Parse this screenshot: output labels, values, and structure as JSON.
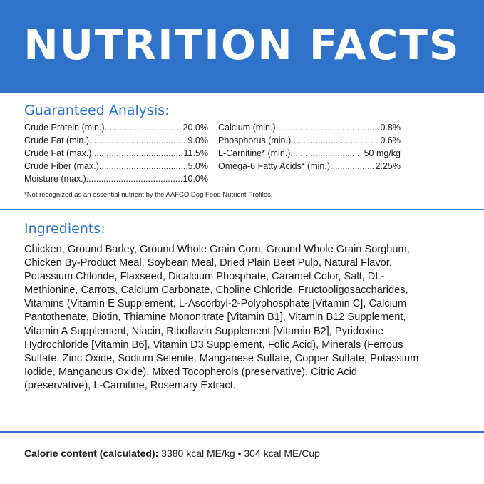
{
  "header": {
    "title": "NUTRITION FACTS"
  },
  "guaranteed_analysis": {
    "heading": "Guaranteed Analysis:",
    "left_column": [
      {
        "label": "Crude Protein (min.)",
        "value": "20.0%"
      },
      {
        "label": "Crude Fat (min.)",
        "value": "9.0%"
      },
      {
        "label": "Crude Fat (max.)",
        "value": "11.5%"
      },
      {
        "label": "Crude Fiber (max.)",
        "value": "5.0%"
      },
      {
        "label": "Moisture (max.)",
        "value": "10.0%"
      }
    ],
    "right_column": [
      {
        "label": "Calcium (min.)",
        "value": "0.8%"
      },
      {
        "label": "Phosphorus (min.)",
        "value": "0.6%"
      },
      {
        "label": "L-Carnitine* (min.)",
        "value": "50 mg/kg"
      },
      {
        "label": "Omega-6 Fatty Acids* (min.)",
        "value": "2.25%"
      }
    ],
    "footnote": "*Not recognized as an essential nutrient by the AAFCO Dog Food Nutrient Profiles."
  },
  "ingredients": {
    "heading": "Ingredients:",
    "text": "Chicken, Ground Barley, Ground Whole Grain Corn, Ground Whole Grain Sorghum, Chicken By-Product Meal, Soybean Meal, Dried Plain Beet Pulp, Natural Flavor, Potassium Chloride, Flaxseed, Dicalcium Phosphate, Caramel Color, Salt, DL-Methionine, Carrots, Calcium Carbonate, Choline Chloride, Fructooligosaccharides, Vitamins (Vitamin E Supplement, L-Ascorbyl-2-Polyphosphate [Vitamin C], Calcium Pantothenate, Biotin, Thiamine Mononitrate [Vitamin B1], Vitamin B12 Supplement, Vitamin A Supplement, Niacin, Riboflavin Supplement [Vitamin B2], Pyridoxine Hydrochloride [Vitamin B6], Vitamin D3 Supplement, Folic Acid), Minerals (Ferrous Sulfate, Zinc Oxide, Sodium Selenite, Manganese Sulfate, Copper Sulfate, Potassium Iodide, Manganous Oxide), Mixed Tocopherols (preservative), Citric Acid (preservative), L-Carnitine, Rosemary Extract."
  },
  "calorie": {
    "label": "Calorie content (calculated):",
    "value": " 3380 kcal ME/kg • 304 kcal ME/Cup"
  },
  "colors": {
    "accent": "#2f72c9",
    "text": "#1a1a1a",
    "background": "#ffffff"
  }
}
